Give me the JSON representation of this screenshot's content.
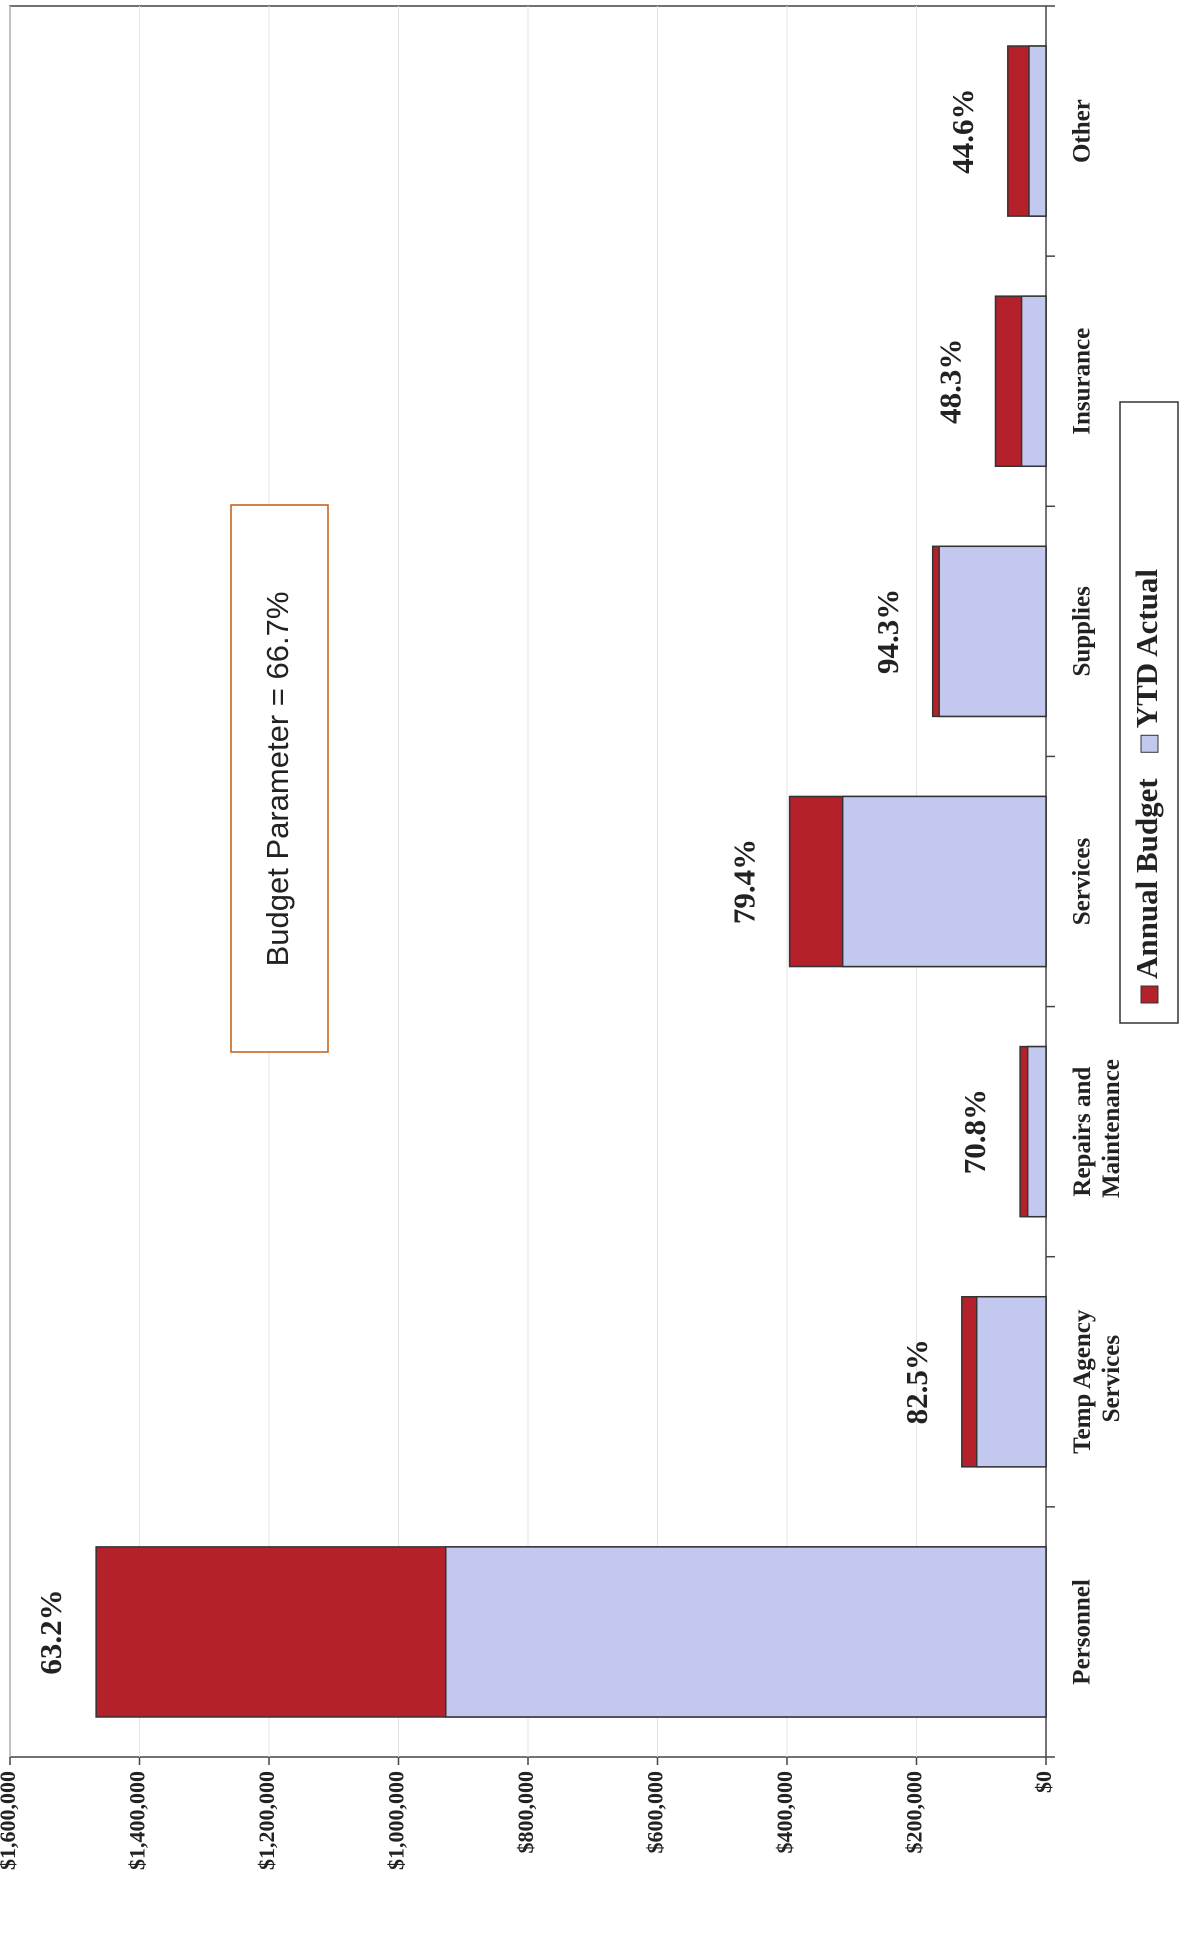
{
  "chart_data": {
    "type": "bar",
    "overlap": true,
    "categories": [
      "Personnel",
      "Temp Agency Services",
      "Repairs and Maintenance",
      "Services",
      "Supplies",
      "Insurance",
      "Other"
    ],
    "series": [
      {
        "name": "Annual Budget",
        "color": "#b5212b",
        "values": [
          1467000,
          130000,
          40000,
          396000,
          175000,
          78000,
          59000
        ]
      },
      {
        "name": "YTD Actual",
        "color": "#c3c9ee",
        "values": [
          927000,
          107000,
          28300,
          314000,
          165000,
          37700,
          26300
        ]
      }
    ],
    "percent_labels": [
      "63.2%",
      "82.5%",
      "70.8%",
      "79.4%",
      "94.3%",
      "48.3%",
      "44.6%"
    ],
    "annotation": "Budget Parameter = 66.7%",
    "ylim": [
      0,
      1600000
    ],
    "yticks": [
      {
        "value": 0,
        "label": "$0"
      },
      {
        "value": 200000,
        "label": "$200,000"
      },
      {
        "value": 400000,
        "label": "$400,000"
      },
      {
        "value": 600000,
        "label": "$600,000"
      },
      {
        "value": 800000,
        "label": "$800,000"
      },
      {
        "value": 1000000,
        "label": "$1,000,000"
      },
      {
        "value": 1200000,
        "label": "$1,200,000"
      },
      {
        "value": 1400000,
        "label": "$1,400,000"
      },
      {
        "value": 1600000,
        "label": "$1,600,000"
      }
    ],
    "grid": true,
    "legend": "bottom",
    "rotated": true
  }
}
